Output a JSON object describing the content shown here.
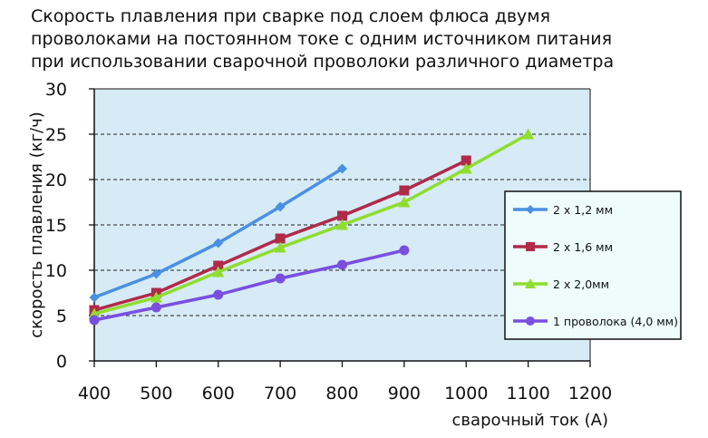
{
  "chart_data": {
    "type": "line",
    "title": [
      "Скорость плавления при сварке под слоем флюса двумя",
      "проволоками на постоянном токе с одним источником питания",
      "при использовании сварочной проволоки различного диаметра"
    ],
    "xlabel": "сварочный ток (A)",
    "ylabel": "скорость плавления (кг/ч)",
    "xlim": [
      400,
      1200
    ],
    "ylim": [
      0,
      30
    ],
    "xticks": [
      400,
      500,
      600,
      700,
      800,
      900,
      1000,
      1100,
      1200
    ],
    "yticks": [
      0,
      5,
      10,
      15,
      20,
      25,
      30
    ],
    "grid": "horizontal dashed",
    "legend_position": "right",
    "plot_background": "#d6ebf5",
    "series": [
      {
        "name": "2 x 1,2 мм",
        "color": "#4a90e2",
        "marker": "diamond",
        "x": [
          400,
          500,
          600,
          700,
          800
        ],
        "y": [
          7.0,
          9.6,
          13.0,
          17.0,
          21.2
        ]
      },
      {
        "name": "2 x 1,6 мм",
        "color": "#b02a4a",
        "marker": "square",
        "x": [
          400,
          500,
          600,
          700,
          800,
          900,
          1000
        ],
        "y": [
          5.6,
          7.5,
          10.5,
          13.5,
          16.0,
          18.8,
          22.1
        ]
      },
      {
        "name": "2 x 2,0мм",
        "color": "#8fdd2e",
        "marker": "triangle",
        "x": [
          400,
          500,
          600,
          700,
          800,
          900,
          1000,
          1100
        ],
        "y": [
          5.2,
          7.0,
          9.8,
          12.5,
          15.0,
          17.5,
          21.2,
          25.0
        ]
      },
      {
        "name": "1 проволока (4,0 мм)",
        "color": "#7a4fe0",
        "marker": "circle",
        "x": [
          400,
          500,
          600,
          700,
          800,
          900
        ],
        "y": [
          4.5,
          5.9,
          7.3,
          9.1,
          10.6,
          12.2
        ]
      }
    ]
  }
}
